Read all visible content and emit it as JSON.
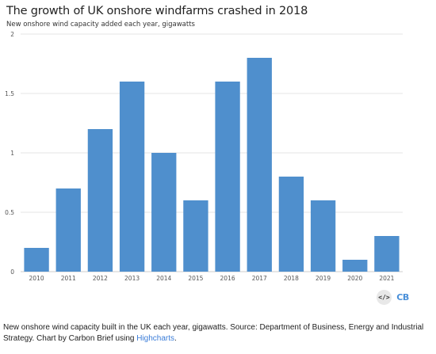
{
  "chart_data": {
    "type": "bar",
    "title": "The growth of UK onshore windfarms crashed in 2018",
    "subtitle": "New onshore wind capacity added each year, gigawatts",
    "categories": [
      "2010",
      "2011",
      "2012",
      "2013",
      "2014",
      "2015",
      "2016",
      "2017",
      "2018",
      "2019",
      "2020",
      "2021"
    ],
    "values": [
      0.2,
      0.7,
      1.2,
      1.6,
      1.0,
      0.6,
      1.6,
      1.8,
      0.8,
      0.6,
      0.1,
      0.3
    ],
    "xlabel": "",
    "ylabel": "",
    "ylim": [
      0,
      2
    ],
    "yticks": [
      0,
      0.5,
      1,
      1.5,
      2
    ],
    "ytick_labels": [
      "0",
      "0.5",
      "1",
      "1.5",
      "2"
    ],
    "grid": true,
    "bar_color": "#4f8fcd",
    "grid_color": "#e6e6e6"
  },
  "badges": {
    "embed_icon": "code-embed-icon",
    "embed_text": "</>",
    "logo_text": "CB"
  },
  "caption": {
    "text": "New onshore wind capacity built in the UK each year, gigawatts. Source: Department of Business, Energy and Industrial Strategy. Chart by Carbon Brief using ",
    "link_text": "Highcharts",
    "end": ".",
    "link_color": "#3b7dd8"
  }
}
